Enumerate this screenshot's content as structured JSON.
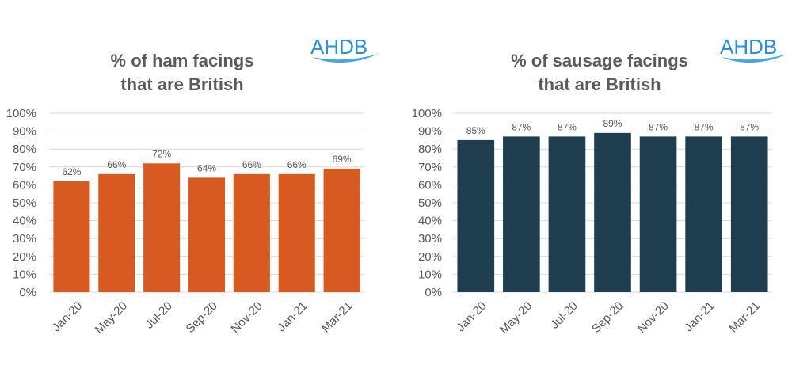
{
  "chart_data": [
    {
      "type": "bar",
      "title_lines": [
        "% of ham facings",
        "that are British"
      ],
      "categories": [
        "Jan-20",
        "May-20",
        "Jul-20",
        "Sep-20",
        "Nov-20",
        "Jan-21",
        "Mar-21"
      ],
      "values": [
        62,
        66,
        72,
        64,
        66,
        66,
        69
      ],
      "data_labels": [
        "62%",
        "66%",
        "72%",
        "64%",
        "66%",
        "66%",
        "69%"
      ],
      "ylim": [
        0,
        100
      ],
      "yticks": [
        "0%",
        "10%",
        "20%",
        "30%",
        "40%",
        "50%",
        "60%",
        "70%",
        "80%",
        "90%",
        "100%"
      ],
      "bar_color": "#d75a21",
      "grid": true,
      "logo": "AHDB"
    },
    {
      "type": "bar",
      "title_lines": [
        "% of sausage facings",
        "that are British"
      ],
      "categories": [
        "Jan-20",
        "May-20",
        "Jul-20",
        "Sep-20",
        "Nov-20",
        "Jan-21",
        "Mar-21"
      ],
      "values": [
        85,
        87,
        87,
        89,
        87,
        87,
        87
      ],
      "data_labels": [
        "85%",
        "87%",
        "87%",
        "89%",
        "87%",
        "87%",
        "87%"
      ],
      "ylim": [
        0,
        100
      ],
      "yticks": [
        "0%",
        "10%",
        "20%",
        "30%",
        "40%",
        "50%",
        "60%",
        "70%",
        "80%",
        "90%",
        "100%"
      ],
      "bar_color": "#1f3e4f",
      "grid": true,
      "logo": "AHDB"
    }
  ],
  "colors": {
    "logo_blue": "#2a8fd6",
    "logo_swoosh": "#3fa9e0",
    "text_gray": "#595959"
  }
}
